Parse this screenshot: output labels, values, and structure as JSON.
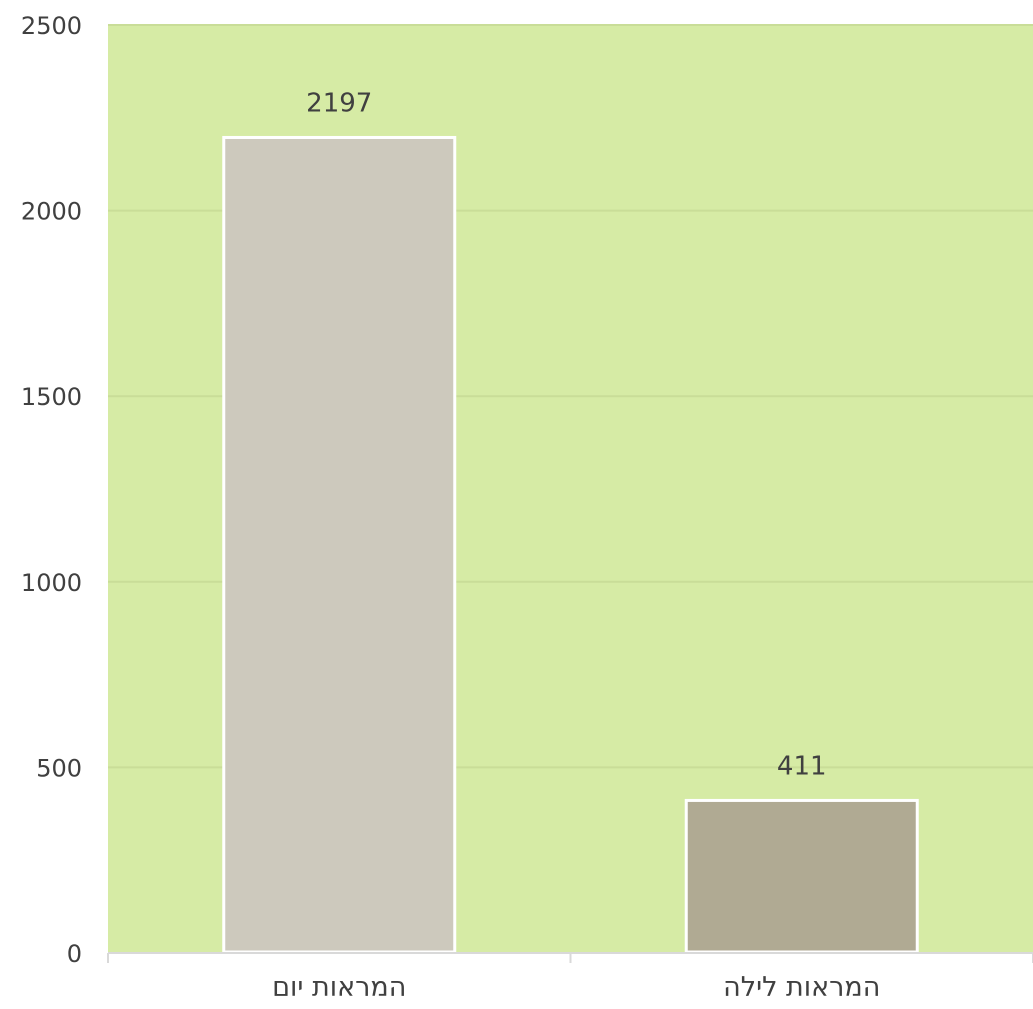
{
  "chart_data": {
    "type": "bar",
    "categories": [
      "המראות יום",
      "המראות לילה"
    ],
    "values": [
      2197,
      411
    ],
    "data_labels": [
      "2197",
      "411"
    ],
    "yticks": [
      "0",
      "500",
      "1000",
      "1500",
      "2000",
      "2500"
    ],
    "ylim": [
      0,
      2500
    ],
    "title": "",
    "xlabel": "",
    "ylabel": "",
    "grid": true,
    "legend": "none",
    "colors": {
      "plot_background": "#d6eba5",
      "bars": [
        "#cdc9bd",
        "#b0aa93"
      ],
      "bar_border": "#ffffff",
      "gridline": "#c9dd98",
      "axis": "#d9d9d9",
      "text": "#404040"
    }
  }
}
